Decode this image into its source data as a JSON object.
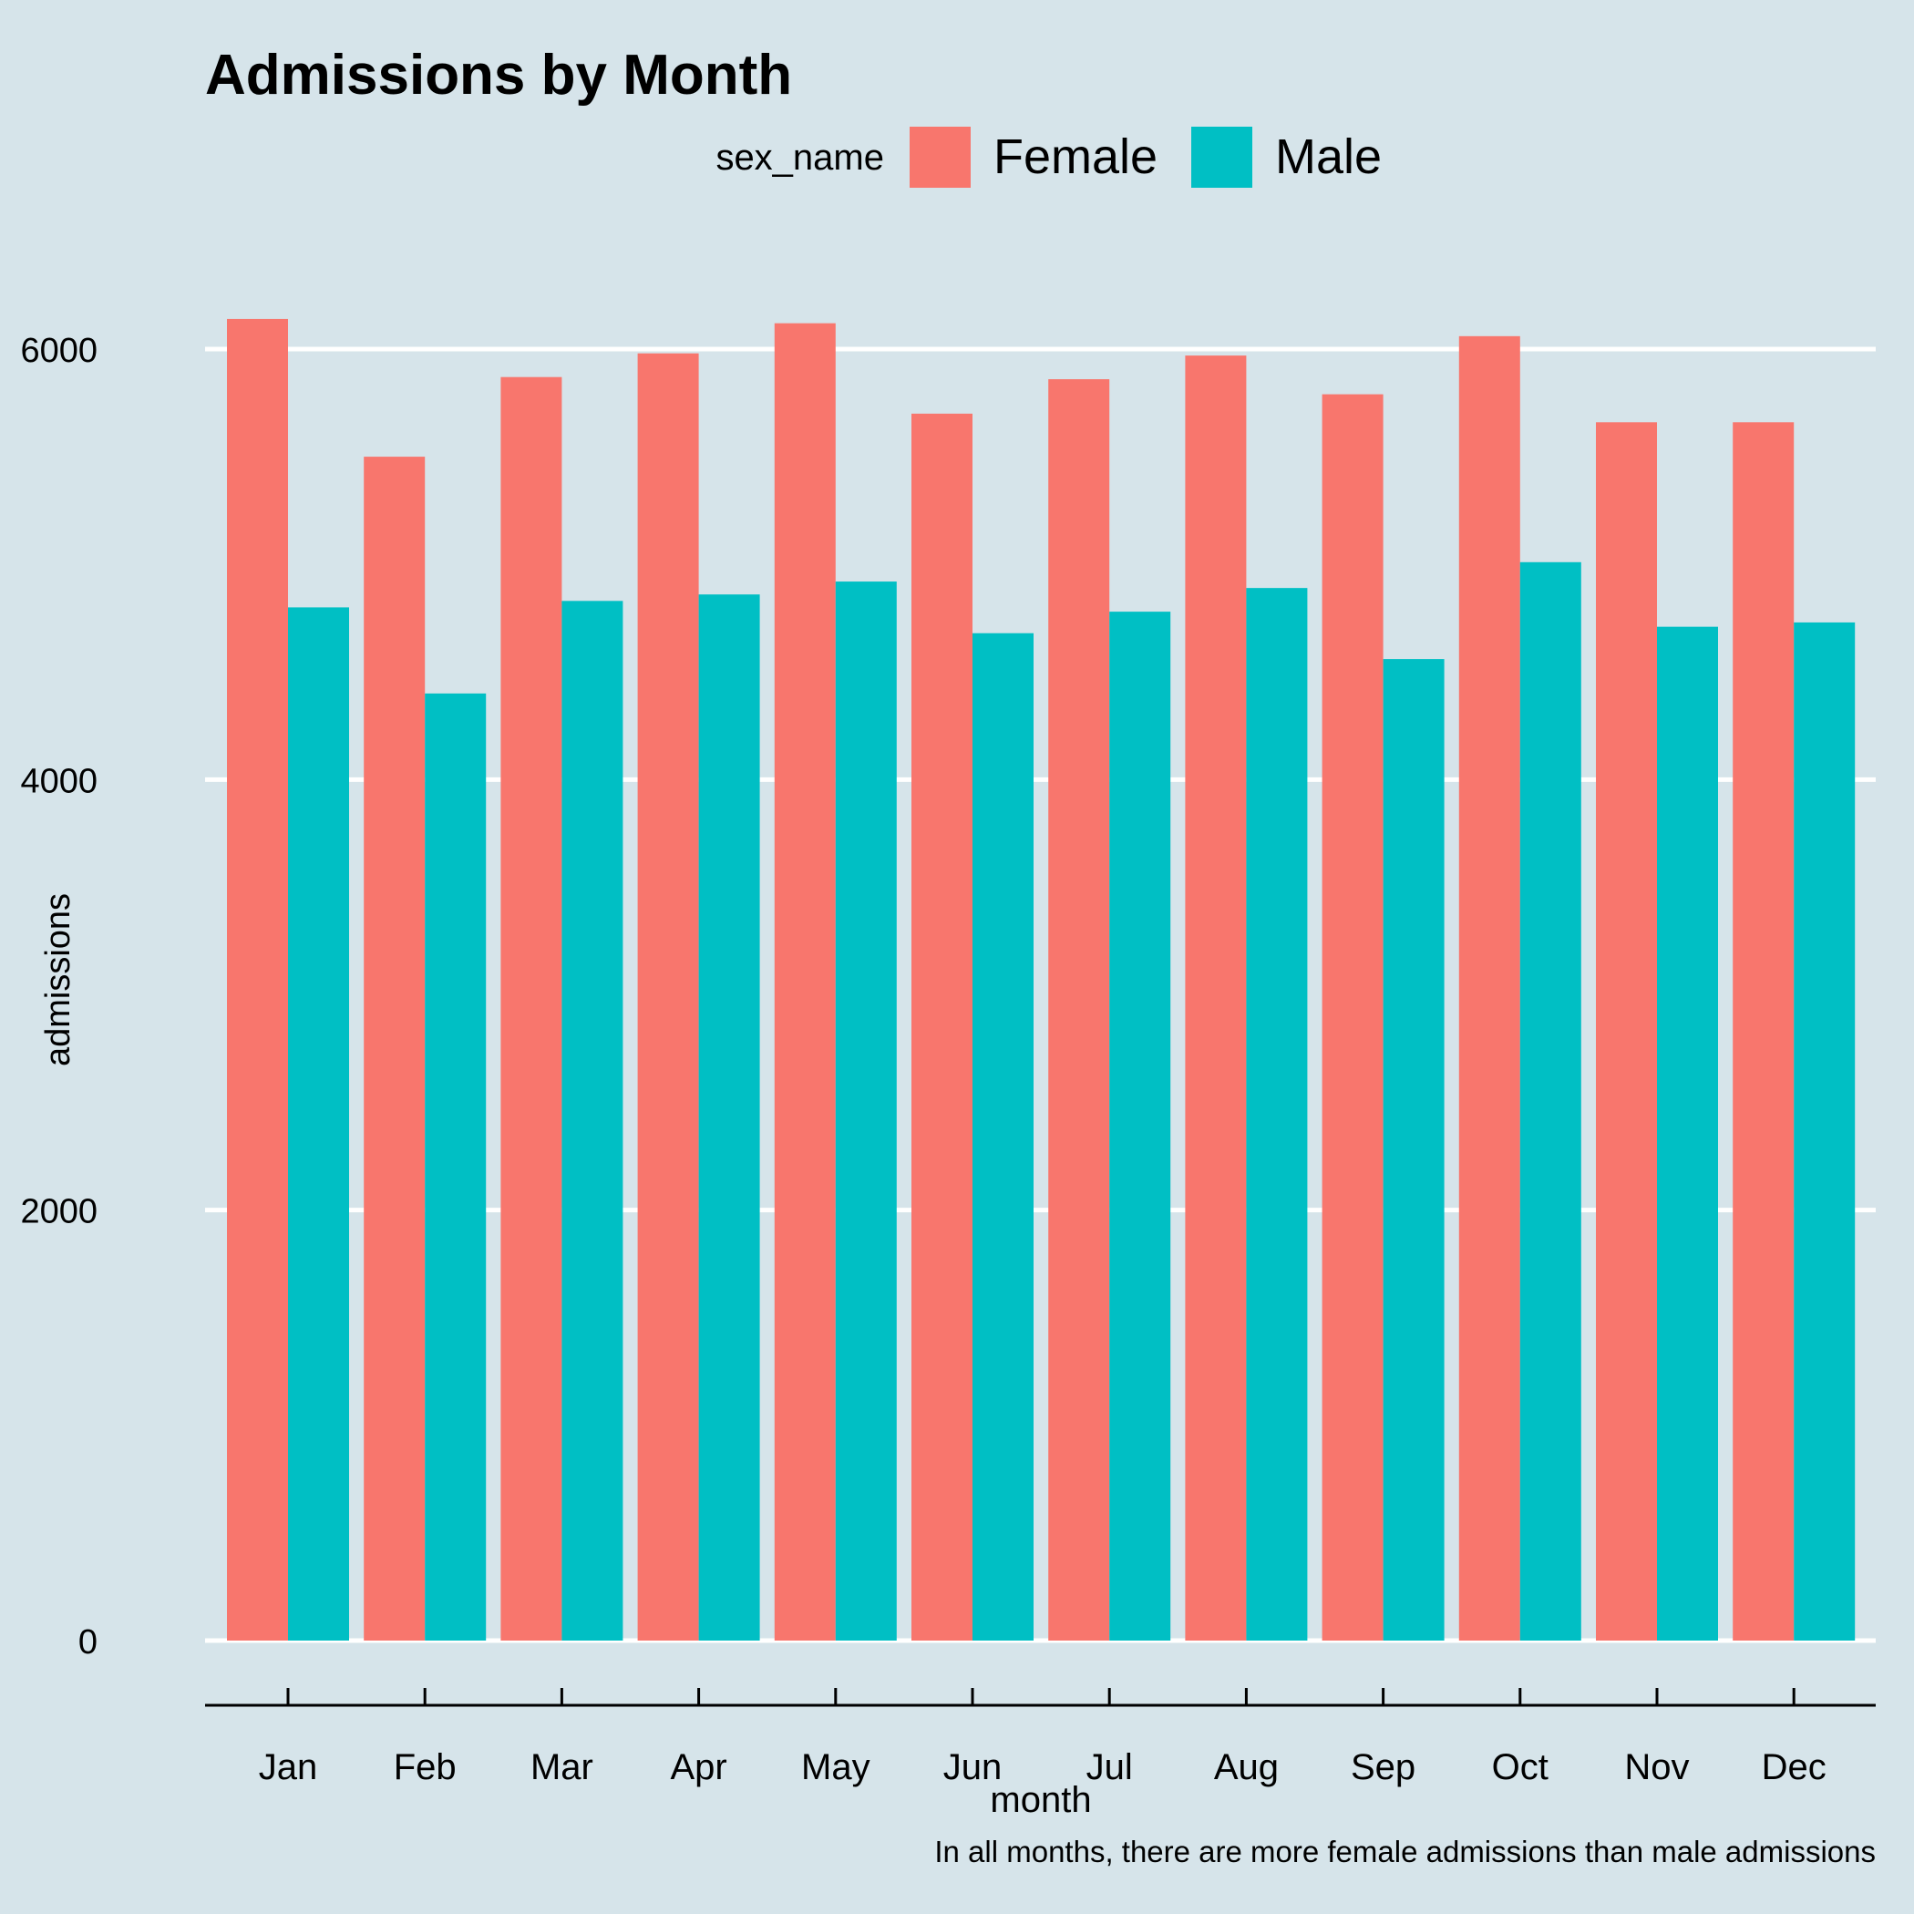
{
  "chart_data": {
    "type": "bar",
    "title": "Admissions by Month",
    "xlabel": "month",
    "ylabel": "admissions",
    "caption": "In all months, there are more female admissions than male admissions",
    "legend_title": "sex_name",
    "legend_position": "top",
    "grid": true,
    "ylim": [
      0,
      6000
    ],
    "yticks": [
      0,
      2000,
      4000,
      6000
    ],
    "categories": [
      "Jan",
      "Feb",
      "Mar",
      "Apr",
      "May",
      "Jun",
      "Jul",
      "Aug",
      "Sep",
      "Oct",
      "Nov",
      "Dec"
    ],
    "series": [
      {
        "name": "Female",
        "color": "#F8766D",
        "values": [
          6140,
          5500,
          5870,
          5980,
          6120,
          5700,
          5860,
          5970,
          5790,
          6060,
          5660,
          5660
        ]
      },
      {
        "name": "Male",
        "color": "#00BFC4",
        "values": [
          4800,
          4400,
          4830,
          4860,
          4920,
          4680,
          4780,
          4890,
          4560,
          5010,
          4710,
          4730
        ]
      }
    ]
  },
  "colors": {
    "background": "#d6e4ea",
    "grid": "#ffffff",
    "axis": "#000000"
  }
}
